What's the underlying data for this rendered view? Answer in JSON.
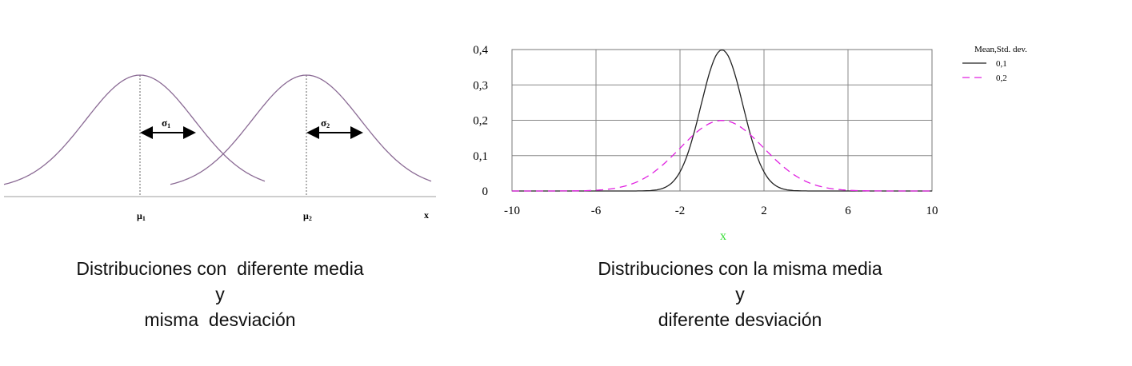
{
  "chart_data": [
    {
      "type": "line",
      "title": "",
      "series": [
        {
          "mean": "μ1",
          "std": "σ1"
        },
        {
          "mean": "μ2",
          "std": "σ2"
        }
      ],
      "labels": {
        "mu1_main": "μ",
        "mu1_sub": "1",
        "mu2_main": "μ",
        "mu2_sub": "2",
        "sigma1_main": "σ",
        "sigma1_sub": "1",
        "sigma2_main": "σ",
        "sigma2_sub": "2",
        "xlabel": "x"
      },
      "colors": {
        "curve": "#8a6a94",
        "axis": "#b0b0b0"
      }
    },
    {
      "type": "line",
      "xlabel": "x",
      "ylabel": "",
      "xlim": [
        -10,
        10
      ],
      "ylim": [
        0,
        0.4
      ],
      "xticks": [
        -10,
        -6,
        -2,
        2,
        6,
        10
      ],
      "xtick_labels": [
        "-10",
        "-6",
        "-2",
        "2",
        "6",
        "10"
      ],
      "yticks": [
        0,
        0.1,
        0.2,
        0.3,
        0.4
      ],
      "ytick_labels": [
        "0",
        "0,1",
        "0,2",
        "0,3",
        "0,4"
      ],
      "grid": true,
      "legend_position": "top-right",
      "legend_title": "Mean,Std. dev.",
      "series": [
        {
          "name": "0,1",
          "mean": 0,
          "std": 1,
          "style": "solid",
          "color": "#222222"
        },
        {
          "name": "0,2",
          "mean": 0,
          "std": 2,
          "style": "dashed",
          "color": "#e020e0"
        }
      ],
      "xlabel_color": "#33dd33"
    }
  ],
  "captions": {
    "left": "Distribuciones con  diferente media\ny\nmisma  desviación",
    "right": "Distribuciones con la misma media\ny\ndiferente desviación"
  }
}
